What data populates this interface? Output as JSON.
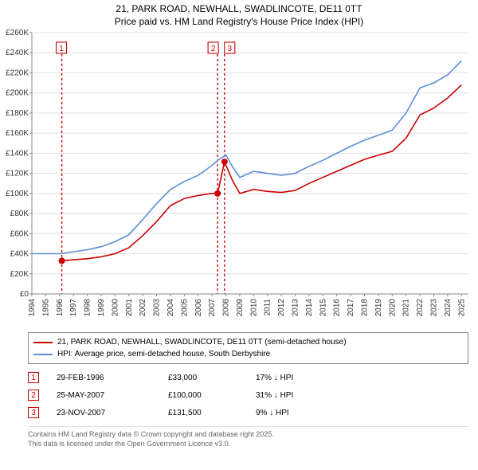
{
  "title_line1": "21, PARK ROAD, NEWHALL, SWADLINCOTE, DE11 0TT",
  "title_line2": "Price paid vs. HM Land Registry's House Price Index (HPI)",
  "chart": {
    "type": "line",
    "background_color": "#ffffff",
    "grid_color": "#e0e0e0",
    "axis_color": "#888888",
    "x_years": [
      1994,
      1995,
      1996,
      1997,
      1998,
      1999,
      2000,
      2001,
      2002,
      2003,
      2004,
      2005,
      2006,
      2007,
      2008,
      2009,
      2010,
      2011,
      2012,
      2013,
      2014,
      2015,
      2016,
      2017,
      2018,
      2019,
      2020,
      2021,
      2022,
      2023,
      2024,
      2025
    ],
    "xlim": [
      1994,
      2025.5
    ],
    "ylim": [
      0,
      260000
    ],
    "ytick_step": 20000,
    "ytick_labels": [
      "£0",
      "£20K",
      "£40K",
      "£60K",
      "£80K",
      "£100K",
      "£120K",
      "£140K",
      "£160K",
      "£180K",
      "£200K",
      "£220K",
      "£240K",
      "£260K"
    ],
    "tick_fontsize": 10,
    "series": [
      {
        "name": "price_paid",
        "label": "21, PARK ROAD, NEWHALL, SWADLINCOTE, DE11 0TT (semi-detached house)",
        "color": "#cc0000",
        "line_width": 1.6,
        "x": [
          1996.16,
          1997,
          1998,
          1999,
          2000,
          2001,
          2002,
          2003,
          2004,
          2005,
          2006,
          2007,
          2007.4,
          2007.9,
          2008.5,
          2009,
          2010,
          2011,
          2012,
          2013,
          2014,
          2015,
          2016,
          2017,
          2018,
          2019,
          2020,
          2021,
          2022,
          2023,
          2024,
          2025
        ],
        "y": [
          33000,
          34000,
          35000,
          37000,
          40000,
          46000,
          58000,
          72000,
          88000,
          95000,
          98000,
          100000,
          100000,
          131500,
          112000,
          100000,
          104000,
          102000,
          101000,
          103000,
          110000,
          116000,
          122000,
          128000,
          134000,
          138000,
          142000,
          155000,
          178000,
          185000,
          195000,
          208000
        ]
      },
      {
        "name": "hpi",
        "label": "HPI: Average price, semi-detached house, South Derbyshire",
        "color": "#5b8fd6",
        "line_width": 1.6,
        "x": [
          1994,
          1995,
          1996,
          1997,
          1998,
          1999,
          2000,
          2001,
          2002,
          2003,
          2004,
          2005,
          2006,
          2007,
          2007.5,
          2008,
          2008.5,
          2009,
          2010,
          2011,
          2012,
          2013,
          2014,
          2015,
          2016,
          2017,
          2018,
          2019,
          2020,
          2021,
          2022,
          2023,
          2024,
          2025
        ],
        "y": [
          40000,
          40000,
          40000,
          42000,
          44000,
          47000,
          52000,
          59000,
          74000,
          90000,
          104000,
          112000,
          118000,
          128000,
          134000,
          138000,
          126000,
          116000,
          122000,
          120000,
          118000,
          120000,
          127000,
          133000,
          140000,
          147000,
          153000,
          158000,
          163000,
          180000,
          205000,
          210000,
          218000,
          232000
        ]
      }
    ],
    "sale_markers": [
      {
        "n": "1",
        "x": 1996.16,
        "y": 33000,
        "color": "#cc0000"
      },
      {
        "n": "2",
        "x": 2007.4,
        "y": 100000,
        "color": "#cc0000"
      },
      {
        "n": "3",
        "x": 2007.9,
        "y": 131500,
        "color": "#cc0000"
      }
    ],
    "marker_label_y_plot": 245000,
    "marker_point_radius": 4
  },
  "legend": {
    "items": [
      {
        "color": "#cc0000",
        "text": "21, PARK ROAD, NEWHALL, SWADLINCOTE, DE11 0TT (semi-detached house)"
      },
      {
        "color": "#5b8fd6",
        "text": "HPI: Average price, semi-detached house, South Derbyshire"
      }
    ]
  },
  "sales_table": {
    "marker_border": "#cc0000",
    "rows": [
      {
        "n": "1",
        "date": "29-FEB-1996",
        "price": "£33,000",
        "diff": "17% ↓ HPI"
      },
      {
        "n": "2",
        "date": "25-MAY-2007",
        "price": "£100,000",
        "diff": "31% ↓ HPI"
      },
      {
        "n": "3",
        "date": "23-NOV-2007",
        "price": "£131,500",
        "diff": "9% ↓ HPI"
      }
    ]
  },
  "footnote_line1": "Contains HM Land Registry data © Crown copyright and database right 2025.",
  "footnote_line2": "This data is licensed under the Open Government Licence v3.0."
}
